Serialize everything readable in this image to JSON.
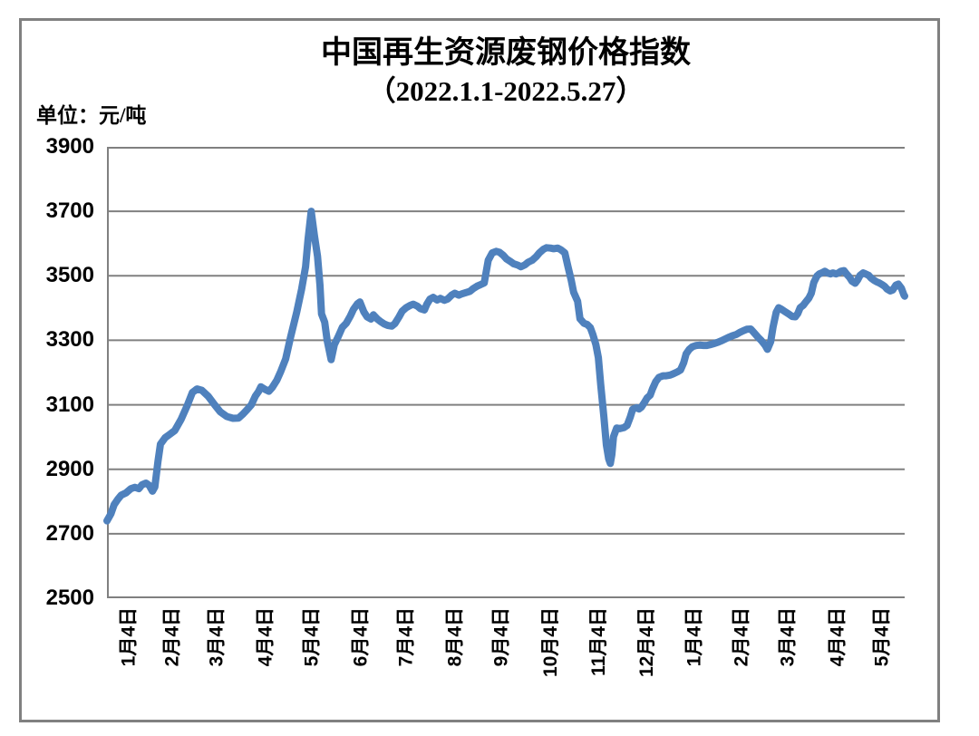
{
  "figure": {
    "title": "中国再生资源废钢价格指数",
    "subtitle": "（2022.1.1-2022.5.27）",
    "unit_label": "单位：元/吨"
  },
  "chart_data": {
    "type": "line",
    "title": "中国再生资源废钢价格指数",
    "subtitle": "（2022.1.1-2022.5.27）",
    "ylabel": "元/吨",
    "series_name": "废钢价格指数",
    "ylim": [
      2500,
      3900
    ],
    "y_ticks": [
      3900,
      3700,
      3500,
      3300,
      3100,
      2900,
      2700,
      2500
    ],
    "x_tick_labels": [
      "1月4日",
      "2月4日",
      "3月4日",
      "4月4日",
      "5月4日",
      "6月4日",
      "7月4日",
      "8月4日",
      "9月4日",
      "10月4日",
      "11月4日",
      "12月4日",
      "1月4日",
      "2月4日",
      "3月4日",
      "4月4日",
      "5月4日"
    ],
    "x_tick_pos": [
      0.0,
      0.055,
      0.111,
      0.172,
      0.23,
      0.291,
      0.348,
      0.409,
      0.468,
      0.53,
      0.59,
      0.65,
      0.71,
      0.769,
      0.827,
      0.889,
      0.945
    ],
    "grid": true,
    "legend_position": "none",
    "line_color": "#4F81BD",
    "grid_color": "#808080",
    "points_format": "[x_fraction_of_axis_0to1, price_yuan_per_ton]",
    "points": [
      [
        0.0,
        2740
      ],
      [
        0.005,
        2762
      ],
      [
        0.009,
        2790
      ],
      [
        0.014,
        2808
      ],
      [
        0.018,
        2820
      ],
      [
        0.024,
        2827
      ],
      [
        0.03,
        2840
      ],
      [
        0.035,
        2844
      ],
      [
        0.04,
        2840
      ],
      [
        0.044,
        2852
      ],
      [
        0.049,
        2857
      ],
      [
        0.053,
        2850
      ],
      [
        0.057,
        2832
      ],
      [
        0.06,
        2845
      ],
      [
        0.064,
        2925
      ],
      [
        0.067,
        2978
      ],
      [
        0.073,
        2998
      ],
      [
        0.078,
        3007
      ],
      [
        0.085,
        3020
      ],
      [
        0.093,
        3055
      ],
      [
        0.101,
        3100
      ],
      [
        0.107,
        3138
      ],
      [
        0.113,
        3149
      ],
      [
        0.119,
        3145
      ],
      [
        0.127,
        3126
      ],
      [
        0.135,
        3100
      ],
      [
        0.142,
        3078
      ],
      [
        0.15,
        3064
      ],
      [
        0.158,
        3058
      ],
      [
        0.165,
        3059
      ],
      [
        0.17,
        3070
      ],
      [
        0.176,
        3086
      ],
      [
        0.181,
        3100
      ],
      [
        0.186,
        3127
      ],
      [
        0.19,
        3141
      ],
      [
        0.193,
        3156
      ],
      [
        0.198,
        3148
      ],
      [
        0.203,
        3142
      ],
      [
        0.207,
        3153
      ],
      [
        0.213,
        3176
      ],
      [
        0.218,
        3204
      ],
      [
        0.224,
        3242
      ],
      [
        0.23,
        3308
      ],
      [
        0.238,
        3388
      ],
      [
        0.244,
        3458
      ],
      [
        0.249,
        3528
      ],
      [
        0.252,
        3612
      ],
      [
        0.256,
        3700
      ],
      [
        0.26,
        3626
      ],
      [
        0.264,
        3560
      ],
      [
        0.267,
        3470
      ],
      [
        0.269,
        3382
      ],
      [
        0.273,
        3356
      ],
      [
        0.276,
        3300
      ],
      [
        0.281,
        3240
      ],
      [
        0.285,
        3286
      ],
      [
        0.29,
        3312
      ],
      [
        0.295,
        3340
      ],
      [
        0.3,
        3353
      ],
      [
        0.305,
        3375
      ],
      [
        0.309,
        3396
      ],
      [
        0.314,
        3413
      ],
      [
        0.317,
        3419
      ],
      [
        0.322,
        3388
      ],
      [
        0.326,
        3373
      ],
      [
        0.331,
        3366
      ],
      [
        0.334,
        3379
      ],
      [
        0.339,
        3366
      ],
      [
        0.343,
        3358
      ],
      [
        0.348,
        3350
      ],
      [
        0.352,
        3346
      ],
      [
        0.357,
        3344
      ],
      [
        0.361,
        3352
      ],
      [
        0.366,
        3372
      ],
      [
        0.37,
        3390
      ],
      [
        0.375,
        3401
      ],
      [
        0.38,
        3408
      ],
      [
        0.384,
        3412
      ],
      [
        0.389,
        3406
      ],
      [
        0.393,
        3398
      ],
      [
        0.398,
        3394
      ],
      [
        0.401,
        3412
      ],
      [
        0.405,
        3428
      ],
      [
        0.409,
        3433
      ],
      [
        0.414,
        3425
      ],
      [
        0.418,
        3430
      ],
      [
        0.423,
        3424
      ],
      [
        0.427,
        3428
      ],
      [
        0.432,
        3440
      ],
      [
        0.436,
        3446
      ],
      [
        0.441,
        3440
      ],
      [
        0.445,
        3444
      ],
      [
        0.45,
        3448
      ],
      [
        0.455,
        3452
      ],
      [
        0.459,
        3460
      ],
      [
        0.464,
        3468
      ],
      [
        0.468,
        3472
      ],
      [
        0.473,
        3478
      ],
      [
        0.478,
        3548
      ],
      [
        0.483,
        3571
      ],
      [
        0.488,
        3576
      ],
      [
        0.492,
        3573
      ],
      [
        0.497,
        3563
      ],
      [
        0.501,
        3552
      ],
      [
        0.506,
        3544
      ],
      [
        0.51,
        3537
      ],
      [
        0.515,
        3533
      ],
      [
        0.519,
        3528
      ],
      [
        0.524,
        3534
      ],
      [
        0.528,
        3542
      ],
      [
        0.533,
        3548
      ],
      [
        0.538,
        3559
      ],
      [
        0.542,
        3571
      ],
      [
        0.547,
        3582
      ],
      [
        0.551,
        3587
      ],
      [
        0.556,
        3586
      ],
      [
        0.56,
        3584
      ],
      [
        0.565,
        3586
      ],
      [
        0.569,
        3581
      ],
      [
        0.574,
        3571
      ],
      [
        0.578,
        3528
      ],
      [
        0.582,
        3486
      ],
      [
        0.585,
        3449
      ],
      [
        0.59,
        3421
      ],
      [
        0.593,
        3367
      ],
      [
        0.598,
        3353
      ],
      [
        0.602,
        3349
      ],
      [
        0.606,
        3339
      ],
      [
        0.609,
        3319
      ],
      [
        0.613,
        3286
      ],
      [
        0.616,
        3246
      ],
      [
        0.619,
        3162
      ],
      [
        0.623,
        3062
      ],
      [
        0.626,
        2976
      ],
      [
        0.629,
        2932
      ],
      [
        0.631,
        2918
      ],
      [
        0.633,
        2946
      ],
      [
        0.635,
        3001
      ],
      [
        0.639,
        3028
      ],
      [
        0.643,
        3026
      ],
      [
        0.648,
        3029
      ],
      [
        0.652,
        3036
      ],
      [
        0.656,
        3062
      ],
      [
        0.659,
        3086
      ],
      [
        0.664,
        3091
      ],
      [
        0.667,
        3087
      ],
      [
        0.67,
        3093
      ],
      [
        0.674,
        3108
      ],
      [
        0.677,
        3121
      ],
      [
        0.681,
        3130
      ],
      [
        0.684,
        3150
      ],
      [
        0.688,
        3172
      ],
      [
        0.692,
        3185
      ],
      [
        0.697,
        3190
      ],
      [
        0.701,
        3190
      ],
      [
        0.706,
        3192
      ],
      [
        0.71,
        3196
      ],
      [
        0.715,
        3202
      ],
      [
        0.719,
        3208
      ],
      [
        0.723,
        3230
      ],
      [
        0.726,
        3258
      ],
      [
        0.73,
        3272
      ],
      [
        0.734,
        3280
      ],
      [
        0.739,
        3284
      ],
      [
        0.743,
        3285
      ],
      [
        0.748,
        3284
      ],
      [
        0.752,
        3284
      ],
      [
        0.757,
        3287
      ],
      [
        0.761,
        3290
      ],
      [
        0.766,
        3294
      ],
      [
        0.77,
        3298
      ],
      [
        0.775,
        3304
      ],
      [
        0.78,
        3310
      ],
      [
        0.784,
        3314
      ],
      [
        0.789,
        3318
      ],
      [
        0.793,
        3324
      ],
      [
        0.798,
        3330
      ],
      [
        0.802,
        3334
      ],
      [
        0.807,
        3335
      ],
      [
        0.811,
        3324
      ],
      [
        0.816,
        3310
      ],
      [
        0.82,
        3300
      ],
      [
        0.825,
        3285
      ],
      [
        0.828,
        3272
      ],
      [
        0.832,
        3296
      ],
      [
        0.835,
        3341
      ],
      [
        0.839,
        3387
      ],
      [
        0.842,
        3401
      ],
      [
        0.845,
        3397
      ],
      [
        0.85,
        3389
      ],
      [
        0.855,
        3381
      ],
      [
        0.859,
        3374
      ],
      [
        0.863,
        3373
      ],
      [
        0.866,
        3383
      ],
      [
        0.869,
        3401
      ],
      [
        0.873,
        3409
      ],
      [
        0.876,
        3419
      ],
      [
        0.88,
        3431
      ],
      [
        0.883,
        3446
      ],
      [
        0.886,
        3479
      ],
      [
        0.89,
        3499
      ],
      [
        0.893,
        3506
      ],
      [
        0.897,
        3510
      ],
      [
        0.9,
        3514
      ],
      [
        0.903,
        3509
      ],
      [
        0.907,
        3506
      ],
      [
        0.91,
        3509
      ],
      [
        0.914,
        3506
      ],
      [
        0.917,
        3509
      ],
      [
        0.92,
        3514
      ],
      [
        0.924,
        3516
      ],
      [
        0.927,
        3506
      ],
      [
        0.931,
        3495
      ],
      [
        0.934,
        3483
      ],
      [
        0.938,
        3477
      ],
      [
        0.941,
        3487
      ],
      [
        0.944,
        3501
      ],
      [
        0.948,
        3509
      ],
      [
        0.951,
        3506
      ],
      [
        0.955,
        3501
      ],
      [
        0.958,
        3493
      ],
      [
        0.961,
        3487
      ],
      [
        0.965,
        3481
      ],
      [
        0.968,
        3478
      ],
      [
        0.972,
        3472
      ],
      [
        0.975,
        3467
      ],
      [
        0.978,
        3459
      ],
      [
        0.982,
        3453
      ],
      [
        0.985,
        3456
      ],
      [
        0.989,
        3471
      ],
      [
        0.992,
        3474
      ],
      [
        0.996,
        3461
      ],
      [
        0.999,
        3441
      ],
      [
        1.0,
        3437
      ]
    ]
  }
}
